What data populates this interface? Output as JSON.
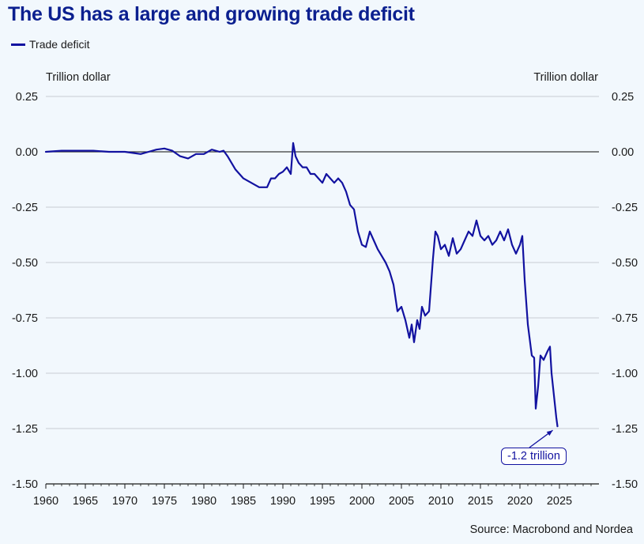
{
  "header": {
    "title": "The US has a large and growing trade deficit",
    "legend_label": "Trade deficit"
  },
  "axes": {
    "left_unit": "Trillion dollar",
    "right_unit": "Trillion dollar"
  },
  "footer": {
    "source": "Source: Macrobond and Nordea"
  },
  "annotation": {
    "label": "-1.2 trillion",
    "x": 2024.75,
    "y": -1.24
  },
  "colors": {
    "line": "#1212a0",
    "grid": "#c8ccd2",
    "zero_line": "#3a3a3a",
    "background": "#f2f8fd",
    "title": "#0b1f8f"
  },
  "chart_data": {
    "type": "line",
    "title": "The US has a large and growing trade deficit",
    "xlabel": "",
    "ylabel": "Trillion dollar",
    "xlim": [
      1960,
      2030
    ],
    "ylim": [
      -1.5,
      0.25
    ],
    "yticks": [
      0.25,
      0.0,
      -0.25,
      -0.5,
      -0.75,
      -1.0,
      -1.25,
      -1.5
    ],
    "ytick_labels": [
      "0.25",
      "0.00",
      "-0.25",
      "-0.50",
      "-0.75",
      "-1.00",
      "-1.25",
      "-1.50"
    ],
    "xticks": [
      1960,
      1965,
      1970,
      1975,
      1980,
      1985,
      1990,
      1995,
      2000,
      2005,
      2010,
      2015,
      2020,
      2025
    ],
    "xtick_labels": [
      "1960",
      "1965",
      "1970",
      "1975",
      "1980",
      "1985",
      "1990",
      "1995",
      "2000",
      "2005",
      "2010",
      "2015",
      "2020",
      "2025"
    ],
    "grid": true,
    "series": [
      {
        "name": "Trade deficit",
        "x": [
          1960,
          1962,
          1964,
          1966,
          1968,
          1970,
          1971,
          1972,
          1973,
          1974,
          1975,
          1976,
          1977,
          1978,
          1979,
          1980,
          1981,
          1982,
          1982.5,
          1983,
          1984,
          1985,
          1986,
          1987,
          1987.5,
          1988,
          1988.5,
          1989,
          1989.5,
          1990,
          1990.5,
          1991,
          1991.3,
          1991.6,
          1992,
          1992.5,
          1993,
          1993.5,
          1994,
          1994.5,
          1995,
          1995.5,
          1996,
          1996.5,
          1997,
          1997.5,
          1998,
          1998.5,
          1999,
          1999.5,
          2000,
          2000.5,
          2001,
          2001.5,
          2002,
          2002.5,
          2003,
          2003.5,
          2004,
          2004.5,
          2005,
          2005.5,
          2006,
          2006.3,
          2006.6,
          2007,
          2007.3,
          2007.6,
          2008,
          2008.5,
          2009,
          2009.3,
          2009.6,
          2010,
          2010.5,
          2011,
          2011.5,
          2012,
          2012.5,
          2013,
          2013.5,
          2014,
          2014.5,
          2015,
          2015.5,
          2016,
          2016.5,
          2017,
          2017.5,
          2018,
          2018.5,
          2019,
          2019.5,
          2020,
          2020.3,
          2020.6,
          2021,
          2021.5,
          2021.8,
          2022,
          2022.3,
          2022.6,
          2023,
          2023.5,
          2023.8,
          2024,
          2024.3,
          2024.6,
          2024.75
        ],
        "values": [
          0.0,
          0.005,
          0.005,
          0.005,
          0.0,
          0.0,
          -0.005,
          -0.01,
          0.0,
          0.01,
          0.015,
          0.005,
          -0.02,
          -0.03,
          -0.01,
          -0.01,
          0.01,
          0.0,
          0.005,
          -0.02,
          -0.08,
          -0.12,
          -0.14,
          -0.16,
          -0.16,
          -0.16,
          -0.12,
          -0.12,
          -0.1,
          -0.09,
          -0.07,
          -0.1,
          0.04,
          -0.02,
          -0.05,
          -0.07,
          -0.07,
          -0.1,
          -0.1,
          -0.12,
          -0.14,
          -0.1,
          -0.12,
          -0.14,
          -0.12,
          -0.14,
          -0.18,
          -0.24,
          -0.26,
          -0.36,
          -0.42,
          -0.43,
          -0.36,
          -0.4,
          -0.44,
          -0.47,
          -0.5,
          -0.54,
          -0.6,
          -0.72,
          -0.7,
          -0.76,
          -0.84,
          -0.78,
          -0.86,
          -0.76,
          -0.8,
          -0.7,
          -0.74,
          -0.72,
          -0.48,
          -0.36,
          -0.38,
          -0.44,
          -0.42,
          -0.47,
          -0.39,
          -0.46,
          -0.44,
          -0.4,
          -0.36,
          -0.38,
          -0.31,
          -0.38,
          -0.4,
          -0.38,
          -0.42,
          -0.4,
          -0.36,
          -0.4,
          -0.35,
          -0.42,
          -0.46,
          -0.42,
          -0.38,
          -0.58,
          -0.78,
          -0.92,
          -0.93,
          -1.16,
          -1.06,
          -0.92,
          -0.94,
          -0.9,
          -0.88,
          -1.0,
          -1.1,
          -1.2,
          -1.24
        ]
      }
    ]
  }
}
